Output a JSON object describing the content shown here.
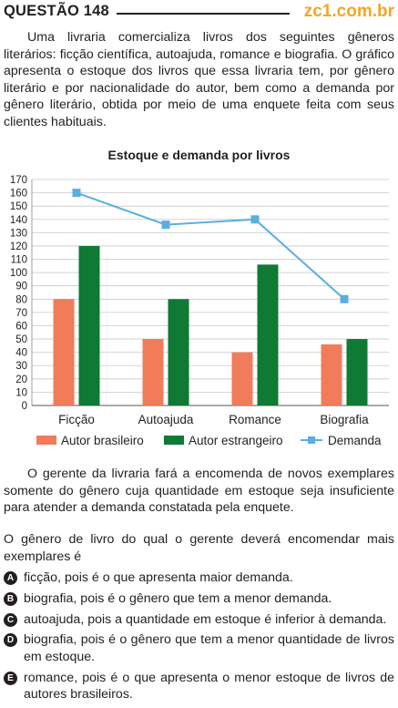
{
  "header": {
    "question": "QUESTÃO 148",
    "brand": "zc1.com.br"
  },
  "intro": "Uma livraria comercializa livros dos seguintes gêneros literários: ficção científica, autoajuda, romance e biografia. O gráfico apresenta o estoque dos livros que essa livraria tem, por gênero literário e por nacionalidade do autor, bem como a demanda por gênero literário, obtida por meio de uma enquete feita com seus clientes habituais.",
  "chart_data": {
    "type": "bar",
    "title": "Estoque e demanda por livros",
    "categories": [
      "Ficção",
      "Autoajuda",
      "Romance",
      "Biografia"
    ],
    "series": [
      {
        "name": "Autor brasileiro",
        "type": "bar",
        "color": "#f07c5a",
        "values": [
          80,
          50,
          40,
          46
        ]
      },
      {
        "name": "Autor estrangeiro",
        "type": "bar",
        "color": "#0e7a33",
        "values": [
          120,
          80,
          106,
          50
        ]
      },
      {
        "name": "Demanda",
        "type": "line",
        "color": "#5aaee0",
        "values": [
          160,
          136,
          140,
          80
        ]
      }
    ],
    "ylim": [
      0,
      170
    ],
    "yticks": [
      0,
      10,
      20,
      30,
      40,
      50,
      60,
      70,
      80,
      90,
      100,
      110,
      120,
      130,
      140,
      150,
      160,
      170
    ],
    "grid": true,
    "legend": "bottom"
  },
  "paragraph2": "O gerente da livraria fará a encomenda de novos exemplares somente do gênero cuja quantidade em estoque seja insuficiente para atender a demanda constatada pela enquete.",
  "paragraph3": "O gênero de livro do qual o gerente deverá encomendar mais exemplares é",
  "options": [
    {
      "letter": "A",
      "text": "ficção, pois é o que apresenta maior demanda."
    },
    {
      "letter": "B",
      "text": "biografia, pois é o gênero que tem a menor demanda."
    },
    {
      "letter": "C",
      "text": "autoajuda, pois a quantidade em estoque é inferior à demanda."
    },
    {
      "letter": "D",
      "text": "biografia, pois é o gênero que tem a menor quantidade de livros em estoque."
    },
    {
      "letter": "E",
      "text": "romance, pois é o que apresenta o menor estoque de livros de autores brasileiros."
    }
  ]
}
